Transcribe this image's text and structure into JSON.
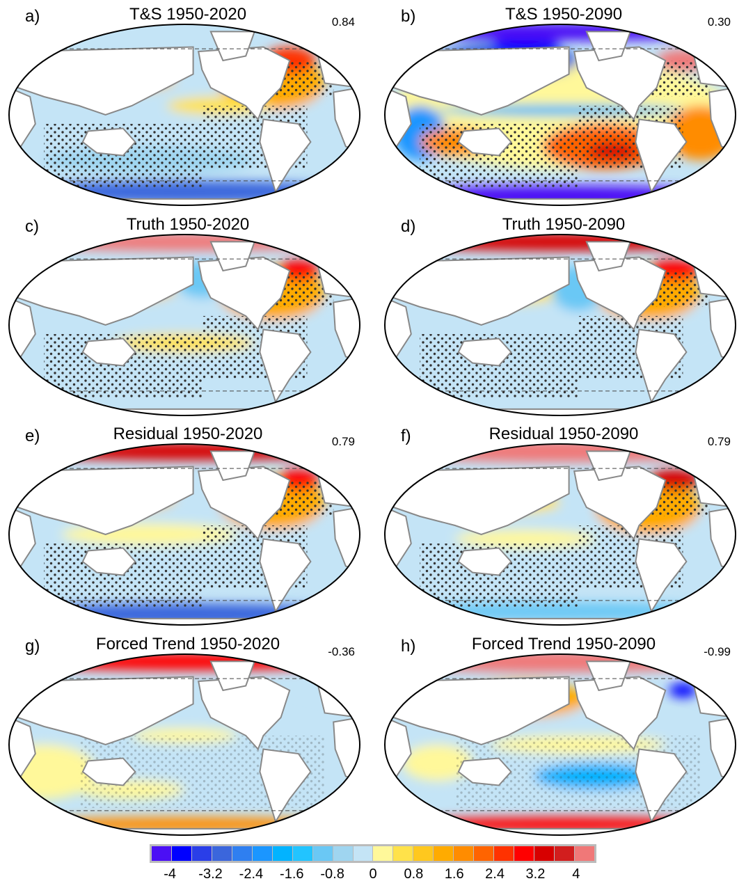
{
  "panels": [
    {
      "label": "a)",
      "title": "T&S 1950-2020",
      "corr": "0.84"
    },
    {
      "label": "b)",
      "title": "T&S 1950-2090",
      "corr": "0.30"
    },
    {
      "label": "c)",
      "title": "Truth 1950-2020",
      "corr": ""
    },
    {
      "label": "d)",
      "title": "Truth 1950-2090",
      "corr": ""
    },
    {
      "label": "e)",
      "title": "Residual 1950-2020",
      "corr": "0.79"
    },
    {
      "label": "f)",
      "title": "Residual 1950-2090",
      "corr": "0.79"
    },
    {
      "label": "g)",
      "title": "Forced Trend 1950-2020",
      "corr": "-0.36"
    },
    {
      "label": "h)",
      "title": "Forced Trend 1950-2090",
      "corr": "-0.99"
    }
  ],
  "colorbar": {
    "colors": [
      "#4b0ff5",
      "#0000ff",
      "#2a3ee8",
      "#3b66dc",
      "#2f7ff0",
      "#1b96ff",
      "#02b3ff",
      "#22c4ff",
      "#6ac8f5",
      "#9fd5f0",
      "#c4e4f6",
      "#fff89a",
      "#ffe24a",
      "#ffc81e",
      "#ffab00",
      "#ff8c00",
      "#ff6400",
      "#ff3200",
      "#ff0000",
      "#d70000",
      "#d21e1e",
      "#f07878"
    ],
    "labels": [
      "-4",
      "-3.2",
      "-2.4",
      "-1.6",
      "-0.8",
      "0",
      "0.8",
      "1.6",
      "2.4",
      "3.2",
      "4"
    ]
  }
}
